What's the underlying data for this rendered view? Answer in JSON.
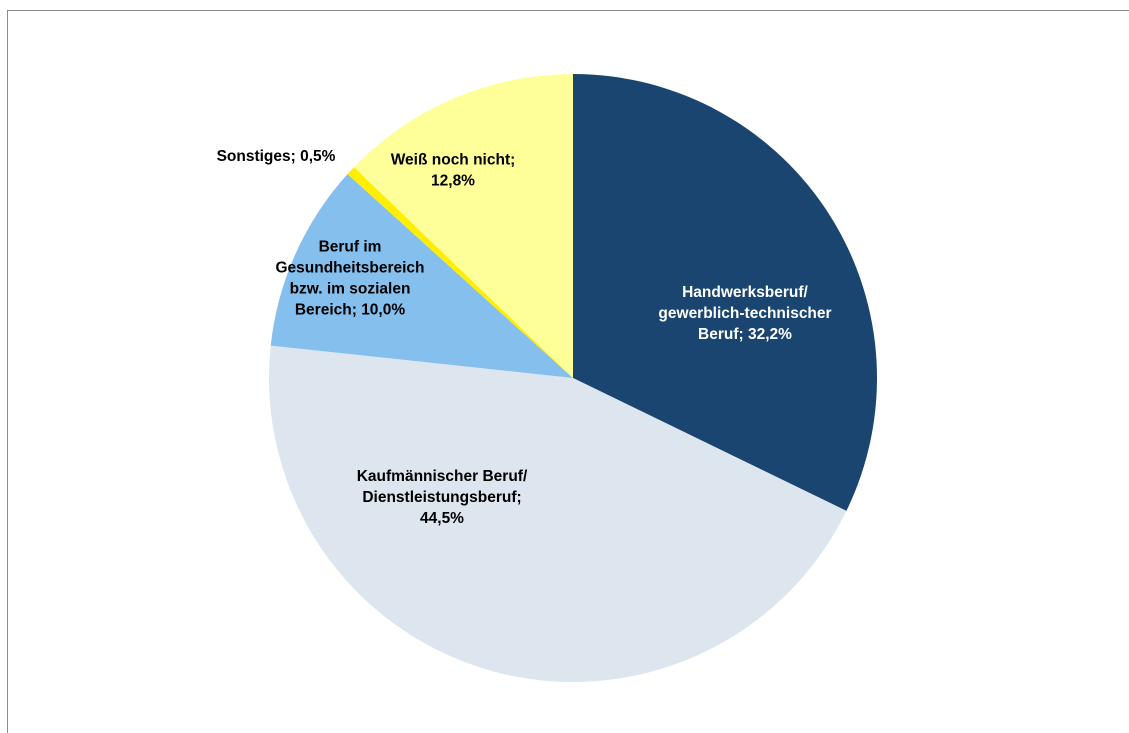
{
  "chart_data": {
    "type": "pie",
    "title": "",
    "legend": "none",
    "start_angle_deg": 0,
    "direction": "clockwise",
    "slices": [
      {
        "name": "Handwerksberuf/ gewerblich-technischer Beruf",
        "value": 32.2,
        "label_lines": [
          "Handwerksberuf/",
          "gewerblich-technischer",
          "Beruf; 32,2%"
        ],
        "color": "#1a4570",
        "label_color": "#ffffff"
      },
      {
        "name": "Kaufmännischer Beruf/ Dienstleistungsberuf",
        "value": 44.5,
        "label_lines": [
          "Kaufmännischer Beruf/",
          "Dienstleistungsberuf;",
          "44,5%"
        ],
        "color": "#dde5ef",
        "label_color": "#000000"
      },
      {
        "name": "Beruf im Gesundheitsbereich bzw. im sozialen Bereich",
        "value": 10.0,
        "label_lines": [
          "Beruf im",
          "Gesundheitsbereich",
          "bzw. im sozialen",
          "Bereich; 10,0%"
        ],
        "color": "#85bfed",
        "label_color": "#000000"
      },
      {
        "name": "Sonstiges",
        "value": 0.5,
        "label_lines": [
          "Sonstiges; 0,5%"
        ],
        "color": "#ffee00",
        "label_color": "#000000"
      },
      {
        "name": "Weiß noch nicht",
        "value": 12.8,
        "label_lines": [
          "Weiß noch nicht;",
          "12,8%"
        ],
        "color": "#ffff99",
        "label_color": "#000000"
      }
    ]
  }
}
